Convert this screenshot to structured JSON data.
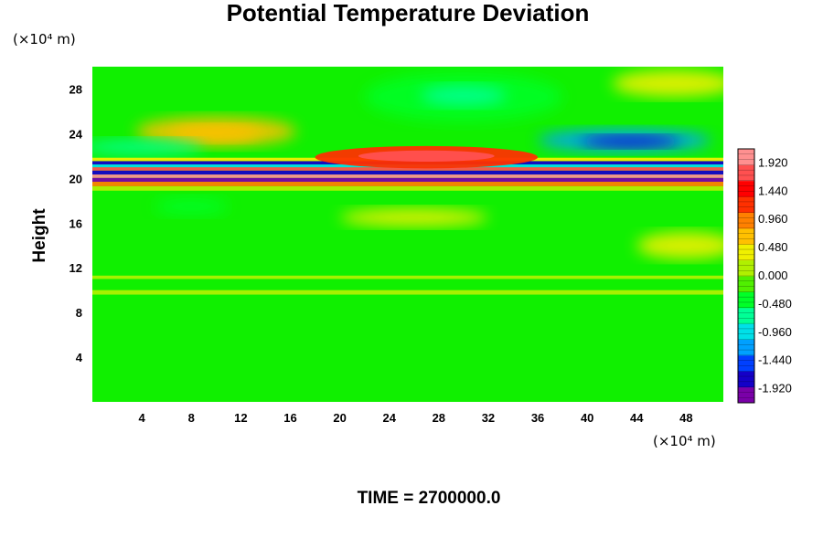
{
  "chart_data": {
    "type": "heatmap",
    "title": "Potential Temperature Deviation",
    "ylabel": "Height",
    "xlabel": "",
    "x_unit": "(×10⁴ m)",
    "y_unit": "(×10⁴ m)",
    "xlim": [
      0,
      51
    ],
    "ylim": [
      0,
      30
    ],
    "x_ticks": [
      4,
      8,
      12,
      16,
      20,
      24,
      28,
      32,
      36,
      40,
      44,
      48
    ],
    "y_ticks": [
      4,
      8,
      12,
      16,
      20,
      24,
      28
    ],
    "colorbar": {
      "range": [
        -2.16,
        2.16
      ],
      "tick_values": [
        1.92,
        1.44,
        0.96,
        0.48,
        0.0,
        -0.48,
        -0.96,
        -1.44,
        -1.92
      ],
      "tick_labels": [
        "1.920",
        "1.440",
        "0.960",
        "0.480",
        "0.000",
        "-0.480",
        "-0.960",
        "-1.440",
        "-1.920"
      ],
      "colors": [
        "#7a00a8",
        "#1400c8",
        "#0040ff",
        "#00a0ff",
        "#00e0e8",
        "#00ff96",
        "#00ff28",
        "#50f000",
        "#b0f000",
        "#f0f000",
        "#ffc000",
        "#ff8000",
        "#ff3000",
        "#ff0000",
        "#ff5050",
        "#ff9090"
      ]
    },
    "features": [
      {
        "name": "lower troposphere",
        "x_range": [
          0,
          51
        ],
        "y_range": [
          0,
          19
        ],
        "value": 0.05
      },
      {
        "name": "dipole band",
        "x_range": [
          0,
          51
        ],
        "y_range": [
          19.5,
          21.8
        ],
        "value": 2.0
      },
      {
        "name": "warm anomaly",
        "x_center": 27,
        "y_center": 22.3,
        "value": 1.5
      },
      {
        "name": "cold anomaly",
        "x_center": 43,
        "y_center": 23.3,
        "value": -1.6
      },
      {
        "name": "cool anomaly",
        "x_center": 30,
        "y_center": 27.5,
        "value": -0.7
      },
      {
        "name": "warm anomaly",
        "x_center": 10,
        "y_center": 24,
        "value": 0.7
      },
      {
        "name": "warm anomaly",
        "x_center": 47,
        "y_center": 28.5,
        "value": 0.6
      }
    ]
  },
  "footer": {
    "time_label": "TIME = 2700000.0"
  }
}
